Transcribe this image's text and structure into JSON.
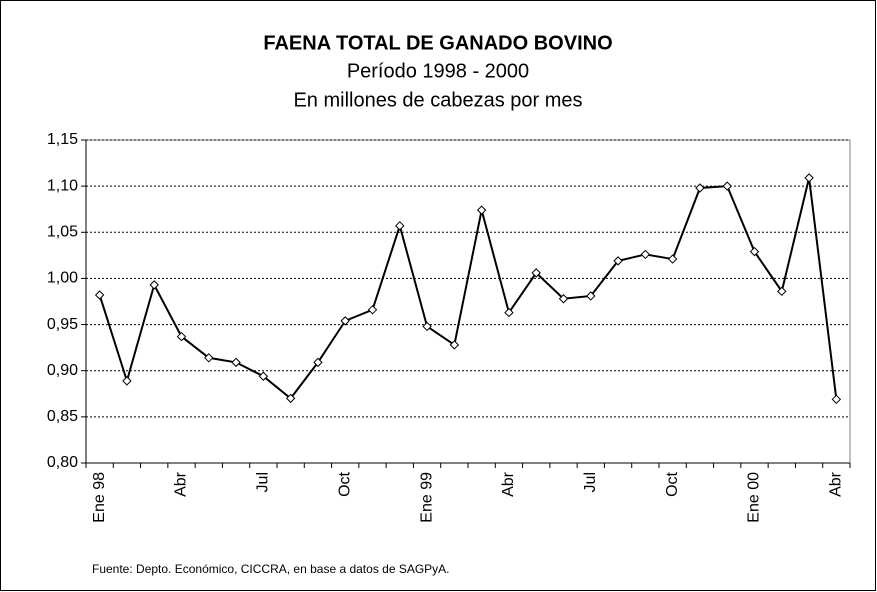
{
  "chart_data": {
    "type": "line",
    "title": "FAENA TOTAL DE GANADO BOVINO",
    "subtitle": "Período 1998 - 2000",
    "subtitle2": "En millones de cabezas por mes",
    "note": "Fuente: Depto. Económico, CICCRA, en base a datos de SAGPyA.",
    "categories": [
      "Ene 98",
      null,
      null,
      "Abr",
      null,
      null,
      "Jul",
      null,
      null,
      "Oct",
      null,
      null,
      "Ene 99",
      null,
      null,
      "Abr",
      null,
      null,
      "Jul",
      null,
      null,
      "Oct",
      null,
      null,
      "Ene 00",
      null,
      null,
      "Abr"
    ],
    "series": [
      {
        "name": "Faena",
        "color": "#000000",
        "values": [
          0.982,
          0.889,
          0.993,
          0.937,
          0.914,
          0.909,
          0.894,
          0.87,
          0.909,
          0.954,
          0.966,
          1.057,
          0.948,
          0.928,
          1.074,
          0.963,
          1.006,
          0.978,
          0.981,
          1.019,
          1.026,
          1.021,
          1.098,
          1.1,
          1.029,
          0.986,
          1.109,
          0.869
        ]
      }
    ],
    "ylim": [
      0.8,
      1.15
    ],
    "yticks": [
      {
        "value": 0.8,
        "label": "0,80"
      },
      {
        "value": 0.85,
        "label": "0,85"
      },
      {
        "value": 0.9,
        "label": "0,90"
      },
      {
        "value": 0.95,
        "label": "0,95"
      },
      {
        "value": 1.0,
        "label": "1,00"
      },
      {
        "value": 1.05,
        "label": "1,05"
      },
      {
        "value": 1.1,
        "label": "1,10"
      },
      {
        "value": 1.15,
        "label": "1,15"
      }
    ],
    "grid": true
  }
}
